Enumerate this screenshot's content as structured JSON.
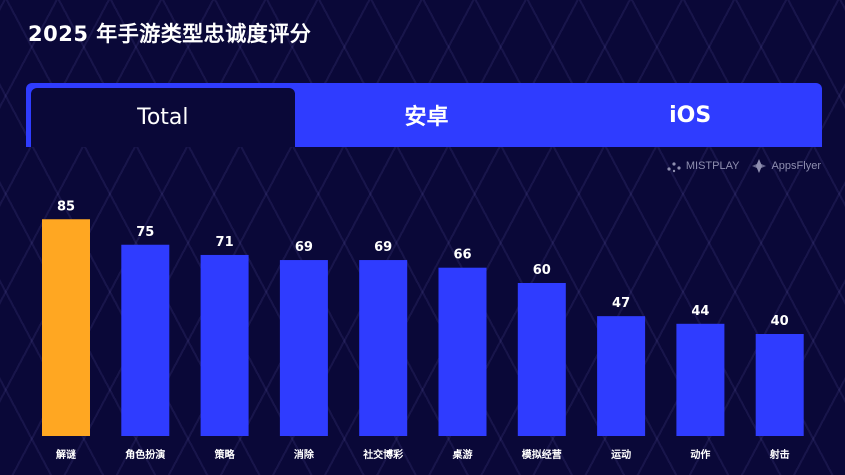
{
  "title": "2025 年手游类型忠诚度评分",
  "tabs": [
    {
      "label": "Total",
      "active": true
    },
    {
      "label": "安卓",
      "active": false
    },
    {
      "label": "iOS",
      "active": false
    }
  ],
  "logos": {
    "mistplay": "MISTPLAY",
    "appsflyer": "AppsFlyer"
  },
  "colors": {
    "background": "#0a0838",
    "accent_blue": "#2f3cff",
    "highlight_orange": "#ffa722"
  },
  "chart_data": {
    "type": "bar",
    "categories": [
      "解谜",
      "角色扮演",
      "策略",
      "消除",
      "社交博彩",
      "桌游",
      "模拟经营",
      "运动",
      "动作",
      "射击"
    ],
    "values": [
      85,
      75,
      71,
      69,
      69,
      66,
      60,
      47,
      44,
      40
    ],
    "highlight_index": 0,
    "ylim": [
      0,
      100
    ],
    "grid": false,
    "data_labels": true
  }
}
